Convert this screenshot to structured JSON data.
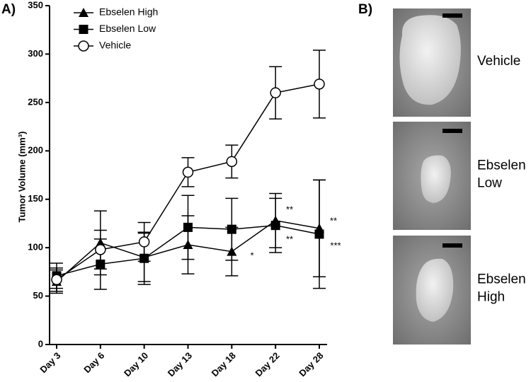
{
  "panel_labels": [
    "A)",
    "B)"
  ],
  "chart_data": {
    "type": "line",
    "y_label": "Tumor Volume (mm³)",
    "categories": [
      "Day 3",
      "Day 6",
      "Day 10",
      "Day 13",
      "Day 18",
      "Day 22",
      "Day 28"
    ],
    "ylim": [
      0,
      350
    ],
    "yticks": [
      0,
      50,
      100,
      150,
      200,
      250,
      300,
      350
    ],
    "series": [
      {
        "name": "Ebselen High",
        "color": "#000000",
        "marker": "triangle",
        "values": [
          65,
          105,
          90,
          103,
          96,
          128,
          120
        ],
        "errors": [
          12,
          33,
          25,
          30,
          25,
          28,
          50
        ]
      },
      {
        "name": "Ebselen Low",
        "color": "#000000",
        "marker": "square",
        "values": [
          71,
          83,
          89,
          121,
          119,
          123,
          114
        ],
        "errors": [
          13,
          26,
          27,
          33,
          32,
          28,
          56
        ]
      },
      {
        "name": "Vehicle",
        "color": "#000000",
        "marker": "open-circle",
        "values": [
          67,
          98,
          106,
          178,
          189,
          260,
          269
        ],
        "errors": [
          12,
          20,
          20,
          15,
          17,
          27,
          35
        ]
      }
    ],
    "annotations": [
      "*",
      "**",
      "**",
      "**",
      "***"
    ]
  },
  "panel_b": {
    "images": [
      {
        "label": [
          "Vehicle"
        ]
      },
      {
        "label": [
          "Ebselen",
          "Low"
        ]
      },
      {
        "label": [
          "Ebselen",
          "High"
        ]
      }
    ]
  }
}
